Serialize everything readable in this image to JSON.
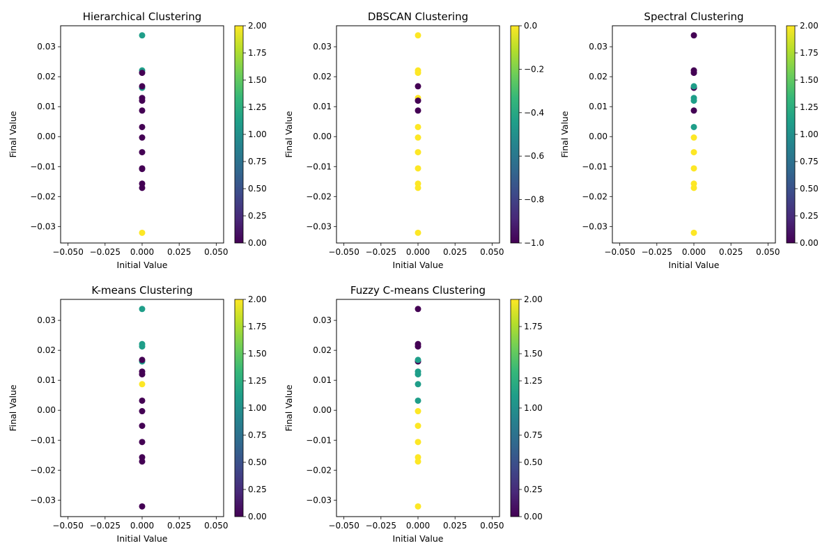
{
  "cmap": [
    "#440154",
    "#482878",
    "#3e4989",
    "#31688e",
    "#26828e",
    "#1f9e89",
    "#35b779",
    "#6ece58",
    "#b5de2b",
    "#fde725"
  ],
  "chart_data": [
    {
      "type": "scatter",
      "title": "Hierarchical Clustering",
      "xlabel": "Initial Value",
      "ylabel": "Final Value",
      "xlim": [
        -0.055,
        0.055
      ],
      "ylim": [
        -0.0355,
        0.037
      ],
      "xticks": [
        -0.05,
        -0.025,
        0,
        0.025,
        0.05
      ],
      "xtick_labels": [
        "−0.050",
        "−0.025",
        "0.000",
        "0.025",
        "0.050"
      ],
      "yticks": [
        -0.03,
        -0.02,
        -0.01,
        0,
        0.01,
        0.02,
        0.03
      ],
      "ytick_labels": [
        "−0.03",
        "−0.02",
        "−0.01",
        "0.00",
        "0.01",
        "0.02",
        "0.03"
      ],
      "colorbar": {
        "range": [
          0,
          2
        ],
        "ticks": [
          0,
          0.25,
          0.5,
          0.75,
          1,
          1.25,
          1.5,
          1.75,
          2
        ],
        "tick_labels": [
          "0.00",
          "0.25",
          "0.50",
          "0.75",
          "1.00",
          "1.25",
          "1.50",
          "1.75",
          "2.00"
        ]
      },
      "points": [
        {
          "x": 0,
          "y": 0.0338,
          "c": 1
        },
        {
          "x": 0,
          "y": 0.0221,
          "c": 1
        },
        {
          "x": 0,
          "y": 0.0213,
          "c": 0
        },
        {
          "x": 0,
          "y": 0.0163,
          "c": 1
        },
        {
          "x": 0,
          "y": 0.0168,
          "c": 0
        },
        {
          "x": 0,
          "y": 0.0129,
          "c": 0
        },
        {
          "x": 0,
          "y": 0.012,
          "c": 0
        },
        {
          "x": 0,
          "y": 0.0087,
          "c": 0
        },
        {
          "x": 0,
          "y": 0.0032,
          "c": 0
        },
        {
          "x": 0,
          "y": -0.0003,
          "c": 0
        },
        {
          "x": 0,
          "y": -0.0052,
          "c": 0
        },
        {
          "x": 0,
          "y": -0.0106,
          "c": 0
        },
        {
          "x": 0,
          "y": -0.0108,
          "c": 0
        },
        {
          "x": 0,
          "y": -0.0157,
          "c": 0
        },
        {
          "x": 0,
          "y": -0.0171,
          "c": 0
        },
        {
          "x": 0,
          "y": -0.0321,
          "c": 2
        }
      ]
    },
    {
      "type": "scatter",
      "title": "DBSCAN Clustering",
      "xlabel": "Initial Value",
      "ylabel": "Final Value",
      "xlim": [
        -0.055,
        0.055
      ],
      "ylim": [
        -0.0355,
        0.037
      ],
      "xticks": [
        -0.05,
        -0.025,
        0,
        0.025,
        0.05
      ],
      "xtick_labels": [
        "−0.050",
        "−0.025",
        "0.000",
        "0.025",
        "0.050"
      ],
      "yticks": [
        -0.03,
        -0.02,
        -0.01,
        0,
        0.01,
        0.02,
        0.03
      ],
      "ytick_labels": [
        "−0.03",
        "−0.02",
        "−0.01",
        "0.00",
        "0.01",
        "0.02",
        "0.03"
      ],
      "colorbar": {
        "range": [
          -1,
          0
        ],
        "ticks": [
          -1,
          -0.8,
          -0.6,
          -0.4,
          -0.2,
          0
        ],
        "tick_labels": [
          "−1.0",
          "−0.8",
          "−0.6",
          "−0.4",
          "−0.2",
          "0.0"
        ]
      },
      "points": [
        {
          "x": 0,
          "y": 0.0338,
          "c": 0
        },
        {
          "x": 0,
          "y": 0.0221,
          "c": 0
        },
        {
          "x": 0,
          "y": 0.0213,
          "c": 0
        },
        {
          "x": 0,
          "y": 0.0168,
          "c": -1
        },
        {
          "x": 0,
          "y": 0.0129,
          "c": 0
        },
        {
          "x": 0,
          "y": 0.012,
          "c": -1
        },
        {
          "x": 0,
          "y": 0.0087,
          "c": -1
        },
        {
          "x": 0,
          "y": 0.0032,
          "c": 0
        },
        {
          "x": 0,
          "y": -0.0003,
          "c": 0
        },
        {
          "x": 0,
          "y": -0.0052,
          "c": 0
        },
        {
          "x": 0,
          "y": -0.0106,
          "c": 0
        },
        {
          "x": 0,
          "y": -0.0157,
          "c": 0
        },
        {
          "x": 0,
          "y": -0.0171,
          "c": 0
        },
        {
          "x": 0,
          "y": -0.0321,
          "c": 0
        }
      ]
    },
    {
      "type": "scatter",
      "title": "Spectral Clustering",
      "xlabel": "Initial Value",
      "ylabel": "Final Value",
      "xlim": [
        -0.055,
        0.055
      ],
      "ylim": [
        -0.0355,
        0.037
      ],
      "xticks": [
        -0.05,
        -0.025,
        0,
        0.025,
        0.05
      ],
      "xtick_labels": [
        "−0.050",
        "−0.025",
        "0.000",
        "0.025",
        "0.050"
      ],
      "yticks": [
        -0.03,
        -0.02,
        -0.01,
        0,
        0.01,
        0.02,
        0.03
      ],
      "ytick_labels": [
        "−0.03",
        "−0.02",
        "−0.01",
        "0.00",
        "0.01",
        "0.02",
        "0.03"
      ],
      "colorbar": {
        "range": [
          0,
          2
        ],
        "ticks": [
          0,
          0.25,
          0.5,
          0.75,
          1,
          1.25,
          1.5,
          1.75,
          2
        ],
        "tick_labels": [
          "0.00",
          "0.25",
          "0.50",
          "0.75",
          "1.00",
          "1.25",
          "1.50",
          "1.75",
          "2.00"
        ]
      },
      "points": [
        {
          "x": 0,
          "y": 0.0338,
          "c": 0
        },
        {
          "x": 0,
          "y": 0.0221,
          "c": 0
        },
        {
          "x": 0,
          "y": 0.0213,
          "c": 0
        },
        {
          "x": 0,
          "y": 0.0163,
          "c": 0
        },
        {
          "x": 0,
          "y": 0.0168,
          "c": 1
        },
        {
          "x": 0,
          "y": 0.0129,
          "c": 1
        },
        {
          "x": 0,
          "y": 0.012,
          "c": 1
        },
        {
          "x": 0,
          "y": 0.0087,
          "c": 0
        },
        {
          "x": 0,
          "y": 0.0032,
          "c": 1
        },
        {
          "x": 0,
          "y": -0.0003,
          "c": 2
        },
        {
          "x": 0,
          "y": -0.0052,
          "c": 2
        },
        {
          "x": 0,
          "y": -0.0106,
          "c": 2
        },
        {
          "x": 0,
          "y": -0.0157,
          "c": 2
        },
        {
          "x": 0,
          "y": -0.0171,
          "c": 2
        },
        {
          "x": 0,
          "y": -0.0321,
          "c": 2
        }
      ]
    },
    {
      "type": "scatter",
      "title": "K-means Clustering",
      "xlabel": "Initial Value",
      "ylabel": "Final Value",
      "xlim": [
        -0.055,
        0.055
      ],
      "ylim": [
        -0.0355,
        0.037
      ],
      "xticks": [
        -0.05,
        -0.025,
        0,
        0.025,
        0.05
      ],
      "xtick_labels": [
        "−0.050",
        "−0.025",
        "0.000",
        "0.025",
        "0.050"
      ],
      "yticks": [
        -0.03,
        -0.02,
        -0.01,
        0,
        0.01,
        0.02,
        0.03
      ],
      "ytick_labels": [
        "−0.03",
        "−0.02",
        "−0.01",
        "0.00",
        "0.01",
        "0.02",
        "0.03"
      ],
      "colorbar": {
        "range": [
          0,
          2
        ],
        "ticks": [
          0,
          0.25,
          0.5,
          0.75,
          1,
          1.25,
          1.5,
          1.75,
          2
        ],
        "tick_labels": [
          "0.00",
          "0.25",
          "0.50",
          "0.75",
          "1.00",
          "1.25",
          "1.50",
          "1.75",
          "2.00"
        ]
      },
      "points": [
        {
          "x": 0,
          "y": 0.0338,
          "c": 1
        },
        {
          "x": 0,
          "y": 0.0221,
          "c": 1
        },
        {
          "x": 0,
          "y": 0.0213,
          "c": 1
        },
        {
          "x": 0,
          "y": 0.0163,
          "c": 1
        },
        {
          "x": 0,
          "y": 0.0168,
          "c": 0
        },
        {
          "x": 0,
          "y": 0.0129,
          "c": 0
        },
        {
          "x": 0,
          "y": 0.012,
          "c": 0
        },
        {
          "x": 0,
          "y": 0.0087,
          "c": 2
        },
        {
          "x": 0,
          "y": 0.0032,
          "c": 0
        },
        {
          "x": 0,
          "y": -0.0003,
          "c": 0
        },
        {
          "x": 0,
          "y": -0.0052,
          "c": 0
        },
        {
          "x": 0,
          "y": -0.0106,
          "c": 0
        },
        {
          "x": 0,
          "y": -0.0157,
          "c": 0
        },
        {
          "x": 0,
          "y": -0.0171,
          "c": 0
        },
        {
          "x": 0,
          "y": -0.0321,
          "c": 0
        }
      ]
    },
    {
      "type": "scatter",
      "title": "Fuzzy C-means Clustering",
      "xlabel": "Initial Value",
      "ylabel": "Final Value",
      "xlim": [
        -0.055,
        0.055
      ],
      "ylim": [
        -0.0355,
        0.037
      ],
      "xticks": [
        -0.05,
        -0.025,
        0,
        0.025,
        0.05
      ],
      "xtick_labels": [
        "−0.050",
        "−0.025",
        "0.000",
        "0.025",
        "0.050"
      ],
      "yticks": [
        -0.03,
        -0.02,
        -0.01,
        0,
        0.01,
        0.02,
        0.03
      ],
      "ytick_labels": [
        "−0.03",
        "−0.02",
        "−0.01",
        "0.00",
        "0.01",
        "0.02",
        "0.03"
      ],
      "colorbar": {
        "range": [
          0,
          2
        ],
        "ticks": [
          0,
          0.25,
          0.5,
          0.75,
          1,
          1.25,
          1.5,
          1.75,
          2
        ],
        "tick_labels": [
          "0.00",
          "0.25",
          "0.50",
          "0.75",
          "1.00",
          "1.25",
          "1.50",
          "1.75",
          "2.00"
        ]
      },
      "points": [
        {
          "x": 0,
          "y": 0.0338,
          "c": 0
        },
        {
          "x": 0,
          "y": 0.0221,
          "c": 0
        },
        {
          "x": 0,
          "y": 0.0213,
          "c": 0
        },
        {
          "x": 0,
          "y": 0.0163,
          "c": 0
        },
        {
          "x": 0,
          "y": 0.0168,
          "c": 1
        },
        {
          "x": 0,
          "y": 0.0129,
          "c": 1
        },
        {
          "x": 0,
          "y": 0.012,
          "c": 1
        },
        {
          "x": 0,
          "y": 0.0087,
          "c": 1
        },
        {
          "x": 0,
          "y": 0.0032,
          "c": 1
        },
        {
          "x": 0,
          "y": -0.0003,
          "c": 2
        },
        {
          "x": 0,
          "y": -0.0052,
          "c": 2
        },
        {
          "x": 0,
          "y": -0.0106,
          "c": 2
        },
        {
          "x": 0,
          "y": -0.0157,
          "c": 2
        },
        {
          "x": 0,
          "y": -0.0171,
          "c": 2
        },
        {
          "x": 0,
          "y": -0.0321,
          "c": 2
        }
      ]
    }
  ]
}
